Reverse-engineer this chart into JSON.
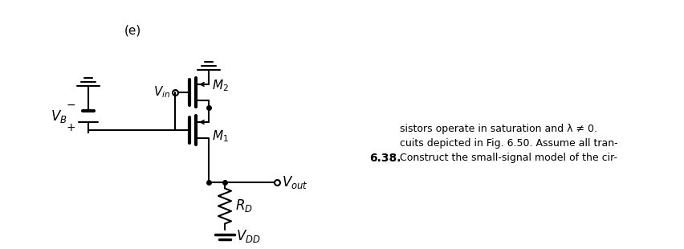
{
  "bg_color": "#ffffff",
  "line_color": "#000000",
  "fig_width": 8.52,
  "fig_height": 3.1,
  "dpi": 100,
  "label_problem": "6.38.",
  "label_text_line1": "Construct the small-signal model of the cir-",
  "label_text_line2": "cuits depicted in Fig. 6.50. Assume all tran-",
  "label_text_line3": "sistors operate in saturation and λ ≠ 0.",
  "label_VDD": "$V_{DD}$",
  "label_RD": "$R_D$",
  "label_Vout": "$V_{out}$",
  "label_M1": "$M_1$",
  "label_Vin": "$V_{in}$",
  "label_M2": "$M_2$",
  "label_VB": "$V_B$",
  "label_e": "(e)",
  "text_fontsize": 9,
  "label_fontsize": 10
}
